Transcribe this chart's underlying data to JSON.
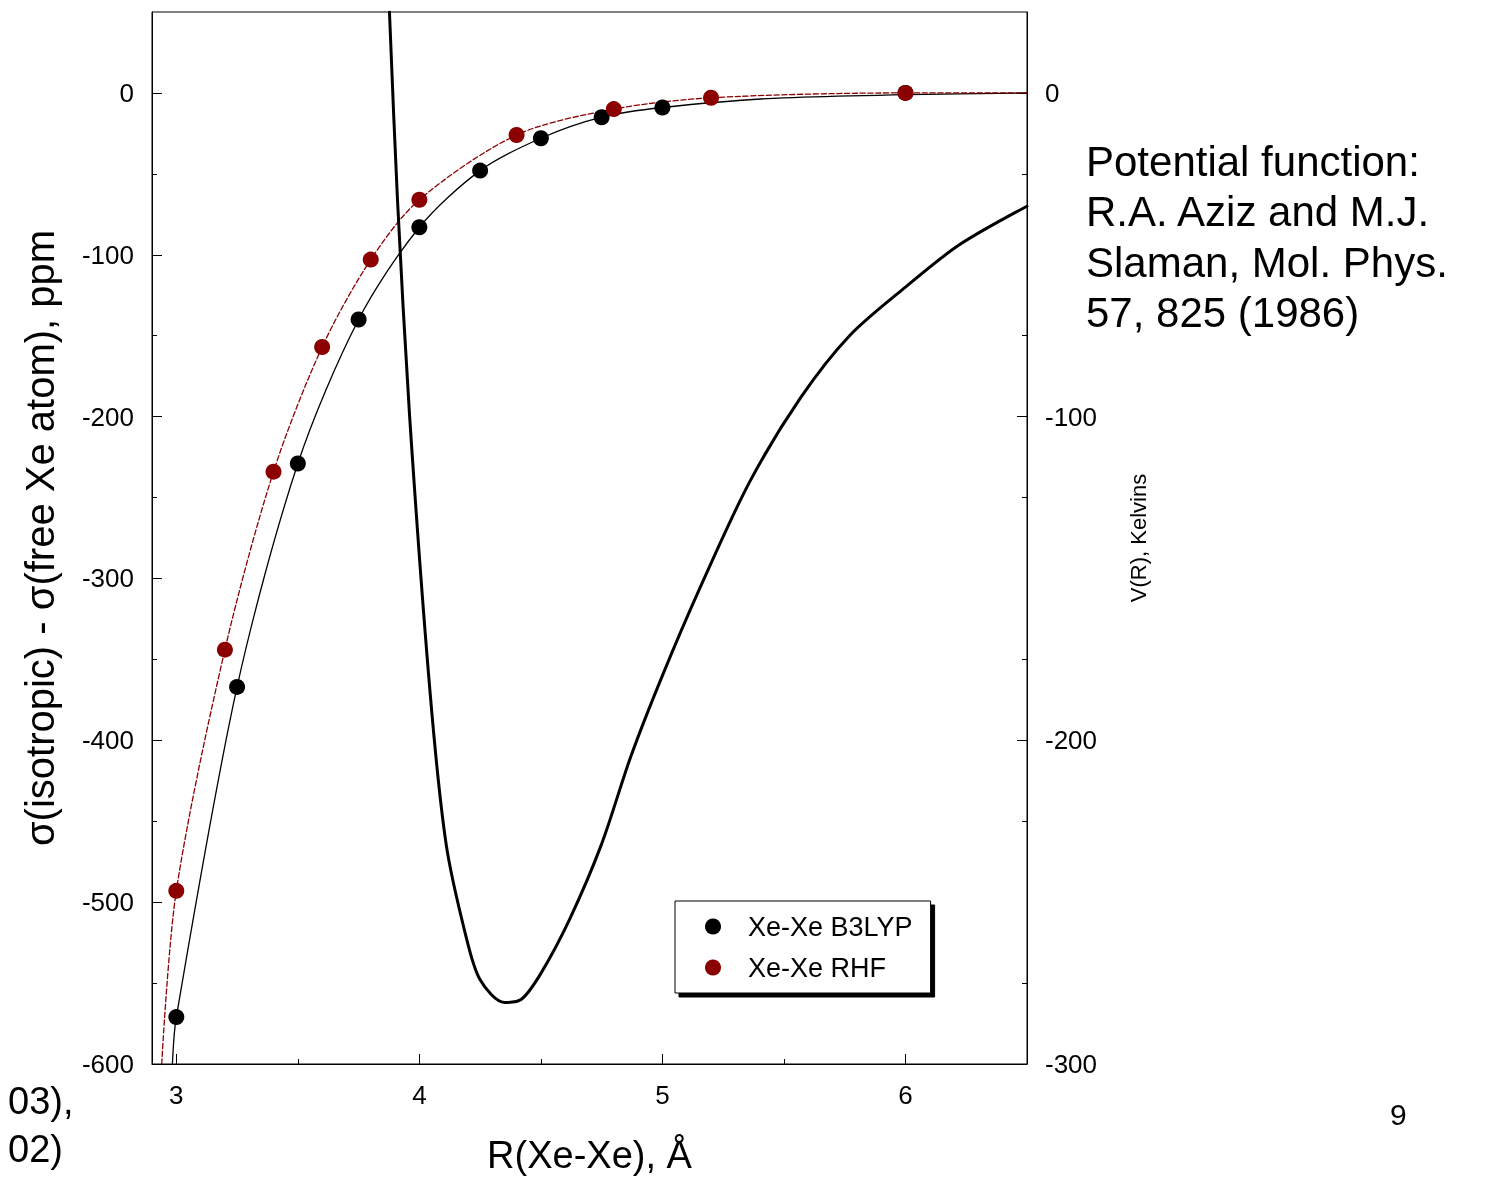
{
  "chart_data": {
    "type": "scatter",
    "xlabel": "R(Xe-Xe), Å",
    "ylabel": "σ(isotropic) - σ(free Xe atom), ppm",
    "y2label": "V(R), Kelvins",
    "xlim": [
      2.9,
      6.5
    ],
    "xticks": [
      3,
      4,
      5,
      6
    ],
    "ylim": [
      -600,
      50
    ],
    "yticks": [
      -600,
      -500,
      -400,
      -300,
      -200,
      -100,
      0
    ],
    "y2lim": [
      -300,
      25
    ],
    "y2ticks": [
      -300,
      -200,
      -100,
      0
    ],
    "legend": "bottom right",
    "annotations": [
      "Potential function:\nR.A. Aziz and M.J.\nSlaman, Mol. Phys.\n57, 825 (1986)",
      "9",
      "03),",
      "02)"
    ],
    "series": [
      {
        "type": "line",
        "marker": "none",
        "color": "#000000",
        "line_style": "solid",
        "x": [
          2.984,
          3.0,
          3.25,
          3.5,
          3.75,
          4.0,
          4.25,
          4.5,
          4.75,
          5.0,
          5.5,
          6.5
        ],
        "values": [
          -600,
          -571,
          -367,
          -229,
          -140,
          -83,
          -48,
          -28,
          -15,
          -9,
          -3,
          0
        ]
      },
      {
        "type": "line",
        "marker": "none",
        "color": "#8b0000",
        "line_style": "dashed",
        "x": [
          2.94,
          3.0,
          3.2,
          3.4,
          3.6,
          3.8,
          4.0,
          4.4,
          4.8,
          5.2,
          6.0,
          6.5
        ],
        "values": [
          -600,
          -493,
          -344,
          -234,
          -157,
          -103,
          -66,
          -26,
          -10,
          -3,
          0,
          0
        ]
      },
      {
        "type": "line",
        "marker": "none",
        "axis": "y2",
        "color": "#000000",
        "line_style": "solid",
        "x": [
          3.877,
          3.91,
          3.96,
          4.045,
          4.11,
          4.19,
          4.25,
          4.35,
          4.42,
          4.5,
          4.62,
          4.75,
          4.87,
          5.0,
          5.16,
          5.36,
          5.57,
          5.77,
          6.0,
          6.22,
          6.5
        ],
        "values": [
          25,
          -33,
          -100,
          -186,
          -232,
          -260,
          -274,
          -281,
          -280,
          -272,
          -255,
          -232,
          -205,
          -180,
          -152,
          -120,
          -94,
          -75,
          -60,
          -47,
          -35
        ]
      },
      {
        "marker": "circle",
        "name": "Xe-Xe B3LYP",
        "color": "#000000",
        "x": [
          3.0,
          3.25,
          3.5,
          3.75,
          4.0,
          4.25,
          4.5,
          4.75,
          5.0,
          6.0
        ],
        "values": [
          -571,
          -367,
          -229,
          -140,
          -83,
          -48,
          -28,
          -15,
          -9,
          0
        ]
      },
      {
        "marker": "circle",
        "name": "Xe-Xe RHF",
        "color": "#8b0000",
        "x": [
          3.0,
          3.2,
          3.4,
          3.6,
          3.8,
          4.0,
          4.4,
          4.8,
          5.2,
          6.0
        ],
        "values": [
          -493,
          -344,
          -234,
          -157,
          -103,
          -66,
          -26,
          -10,
          -3,
          0
        ]
      }
    ]
  }
}
